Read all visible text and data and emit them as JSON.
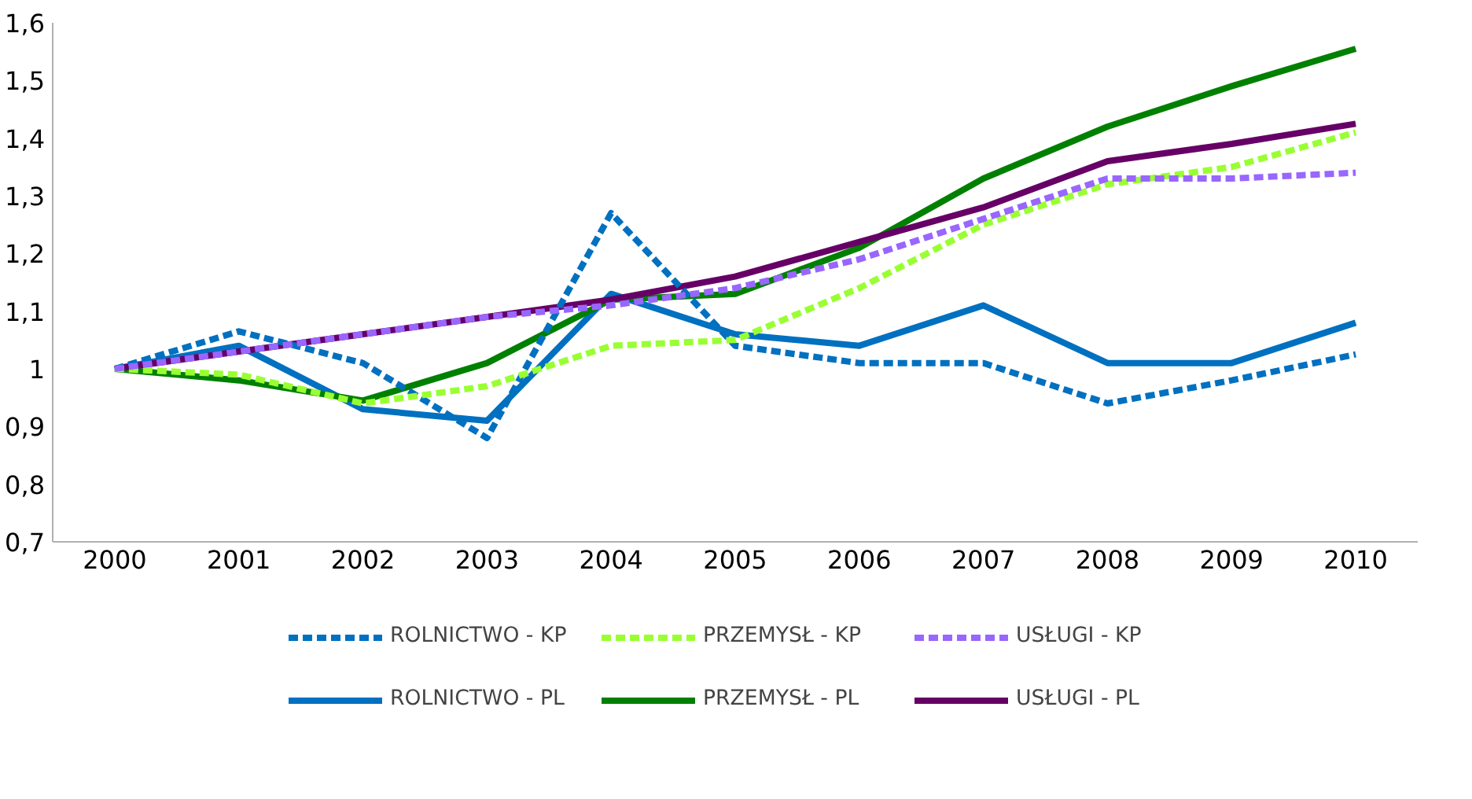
{
  "chart_data": {
    "type": "line",
    "categories": [
      "2000",
      "2001",
      "2002",
      "2003",
      "2004",
      "2005",
      "2006",
      "2007",
      "2008",
      "2009",
      "2010"
    ],
    "ylim": [
      0.7,
      1.6
    ],
    "yticks": [
      {
        "value": 0.7,
        "label": "0,7"
      },
      {
        "value": 0.8,
        "label": "0,8"
      },
      {
        "value": 0.9,
        "label": "0,9"
      },
      1,
      {
        "value": 1.1,
        "label": "1,1"
      },
      {
        "value": 1.2,
        "label": "1,2"
      },
      {
        "value": 1.3,
        "label": "1,3"
      },
      {
        "value": 1.4,
        "label": "1,4"
      },
      {
        "value": 1.5,
        "label": "1,5"
      },
      {
        "value": 1.6,
        "label": "1,6"
      }
    ],
    "grid": false,
    "legend": "bottom",
    "marker": "none",
    "series": [
      {
        "name": "ROLNICTWO - KP",
        "color": "#0070c0",
        "line_style": "dashed",
        "values": [
          1.0,
          1.065,
          1.01,
          0.88,
          1.27,
          1.04,
          1.01,
          1.01,
          0.94,
          0.98,
          1.025
        ]
      },
      {
        "name": "PRZEMYSŁ - KP",
        "color": "#99ff33",
        "line_style": "dashed",
        "values": [
          1.0,
          0.99,
          0.94,
          0.97,
          1.04,
          1.05,
          1.14,
          1.25,
          1.32,
          1.35,
          1.41
        ]
      },
      {
        "name": "USŁUGI - KP",
        "color": "#9966ff",
        "line_style": "dashed",
        "values": [
          1.0,
          1.03,
          1.06,
          1.09,
          1.11,
          1.14,
          1.19,
          1.26,
          1.33,
          1.33,
          1.34
        ]
      },
      {
        "name": "ROLNICTWO - PL",
        "color": "#0070c0",
        "line_style": "solid",
        "values": [
          1.0,
          1.04,
          0.93,
          0.91,
          1.13,
          1.06,
          1.04,
          1.11,
          1.01,
          1.01,
          1.08
        ]
      },
      {
        "name": "PRZEMYSŁ - PL",
        "color": "#008000",
        "line_style": "solid",
        "values": [
          1.0,
          0.98,
          0.945,
          1.01,
          1.12,
          1.13,
          1.21,
          1.33,
          1.42,
          1.49,
          1.555
        ]
      },
      {
        "name": "USŁUGI - PL",
        "color": "#660066",
        "line_style": "solid",
        "values": [
          1.0,
          1.03,
          1.06,
          1.09,
          1.12,
          1.16,
          1.22,
          1.28,
          1.36,
          1.39,
          1.425
        ]
      }
    ]
  }
}
